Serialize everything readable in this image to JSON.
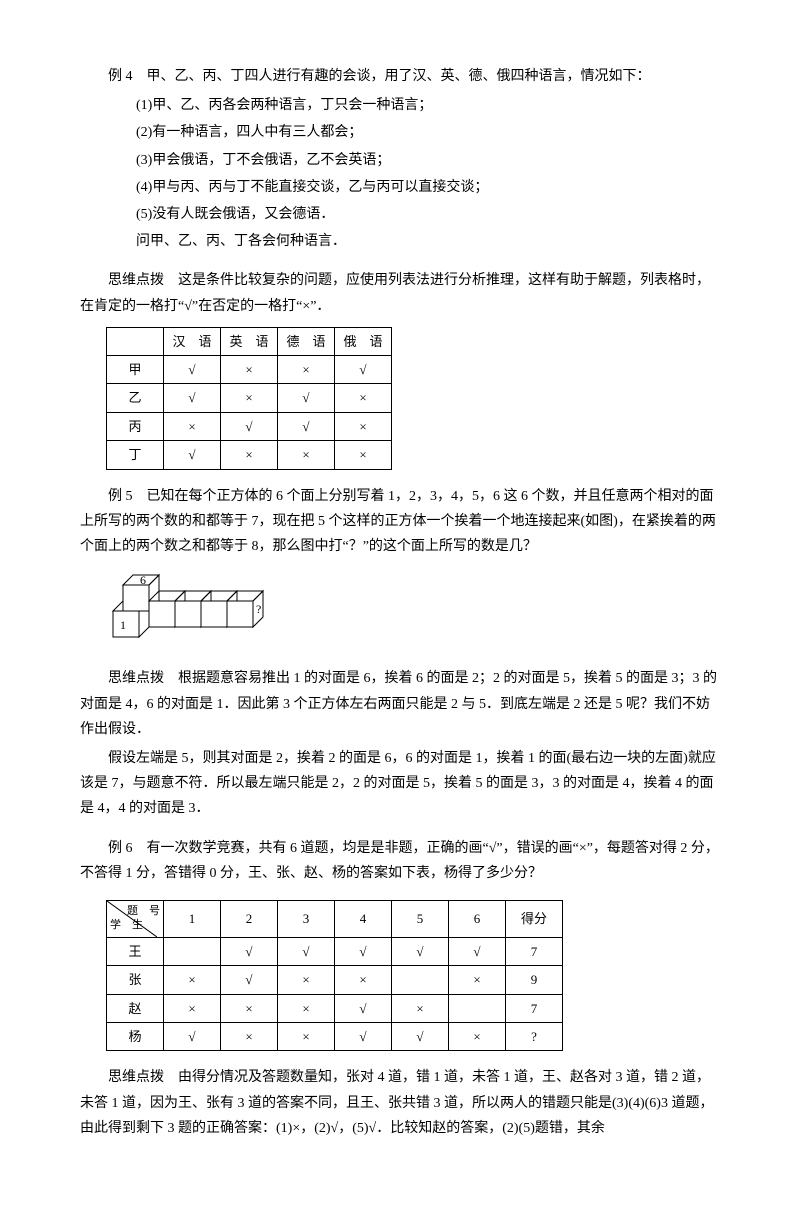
{
  "ex4": {
    "title": "例 4　甲、乙、丙、丁四人进行有趣的会谈，用了汉、英、德、俄四种语言，情况如下：",
    "c1": "(1)甲、乙、丙各会两种语言，丁只会一种语言；",
    "c2": "(2)有一种语言，四人中有三人都会；",
    "c3": "(3)甲会俄语，丁不会俄语，乙不会英语；",
    "c4": "(4)甲与丙、丙与丁不能直接交谈，乙与丙可以直接交谈；",
    "c5": "(5)没有人既会俄语，又会德语．",
    "q": "问甲、乙、丙、丁各会何种语言．",
    "hint": "思维点拨　这是条件比较复杂的问题，应使用列表法进行分析推理，这样有助于解题，列表格时，在肯定的一格打“√”在否定的一格打“×”．",
    "table": {
      "cols": [
        "",
        "汉　语",
        "英　语",
        "德　语",
        "俄　语"
      ],
      "rows": [
        [
          "甲",
          "√",
          "×",
          "×",
          "√"
        ],
        [
          "乙",
          "√",
          "×",
          "√",
          "×"
        ],
        [
          "丙",
          "×",
          "√",
          "√",
          "×"
        ],
        [
          "丁",
          "√",
          "×",
          "×",
          "×"
        ]
      ]
    }
  },
  "ex5": {
    "title": "例 5　已知在每个正方体的 6 个面上分别写着 1，2，3，4，5，6 这 6 个数，并且任意两个相对的面上所写的两个数的和都等于 7，现在把 5 个这样的正方体一个挨着一个地连接起来(如图)，在紧挨着的两个面上的两个数之和都等于 8，那么图中打“？”的这个面上所写的数是几？",
    "hint1": "思维点拨　根据题意容易推出 1 的对面是 6，挨着 6 的面是 2；2 的对面是 5，挨着 5 的面是 3；3 的对面是 4，6 的对面是 1．因此第 3 个正方体左右两面只能是 2 与 5．到底左端是 2 还是 5 呢？我们不妨作出假设．",
    "hint2": "假设左端是 5，则其对面是 2，挨着 2 的面是 6，6 的对面是 1，挨着 1 的面(最右边一块的左面)就应该是 7，与题意不符．所以最左端只能是 2，2 的对面是 5，挨着 5 的面是 3，3 的对面是 4，挨着 4 的面是 4，4 的对面是 3．",
    "labels": {
      "one": "1",
      "six": "6",
      "q": "?"
    }
  },
  "ex6": {
    "title": "例 6　有一次数学竞赛，共有 6 道题，均是是非题，正确的画“√”，错误的画“×”，每题答对得 2 分，不答得 1 分，答错得 0 分，王、张、赵、杨的答案如下表，杨得了多少分？",
    "table": {
      "diag_top": "题　号",
      "diag_bottom": "学　生",
      "cols": [
        "1",
        "2",
        "3",
        "4",
        "5",
        "6",
        "得分"
      ],
      "rows": [
        [
          "王",
          "",
          "√",
          "√",
          "√",
          "√",
          "√",
          "7"
        ],
        [
          "张",
          "×",
          "√",
          "×",
          "×",
          "",
          "×",
          "9"
        ],
        [
          "赵",
          "×",
          "×",
          "×",
          "√",
          "×",
          "",
          "7"
        ],
        [
          "杨",
          "√",
          "×",
          "×",
          "√",
          "√",
          "×",
          "?"
        ]
      ]
    },
    "hint": "思维点拨　由得分情况及答题数量知，张对 4 道，错 1 道，未答 1 道，王、赵各对 3 道，错 2 道，未答 1 道，因为王、张有 3 道的答案不同，且王、张共错 3 道，所以两人的错题只能是(3)(4)(6)3 道题，由此得到剩下 3 题的正确答案：(1)×，(2)√，(5)√．比较知赵的答案，(2)(5)题错，其余"
  }
}
